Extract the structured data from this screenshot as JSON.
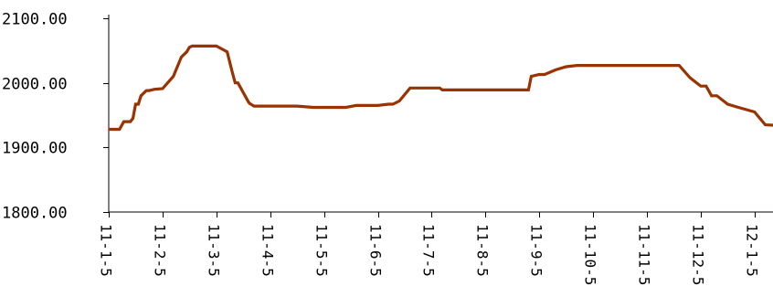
{
  "chart_data": {
    "type": "line",
    "title": "",
    "xlabel": "",
    "ylabel": "",
    "ylim": [
      1800,
      2100
    ],
    "y_ticks": [
      {
        "value": 1800,
        "label": "1800.00"
      },
      {
        "value": 1900,
        "label": "1900.00"
      },
      {
        "value": 2000,
        "label": "2000.00"
      },
      {
        "value": 2100,
        "label": "2100.00"
      }
    ],
    "x_ticks": [
      "11-1-5",
      "11-2-5",
      "11-3-5",
      "11-4-5",
      "11-5-5",
      "11-6-5",
      "11-7-5",
      "11-8-5",
      "11-9-5",
      "11-10-5",
      "11-11-5",
      "11-12-5",
      "12-1-5"
    ],
    "xlim": [
      0,
      12.45
    ],
    "grid": false,
    "line_color": "#993300",
    "series": [
      {
        "x": [
          0.0,
          0.2,
          0.28,
          0.4,
          0.45,
          0.5,
          0.55,
          0.6,
          0.7,
          0.75,
          0.8,
          0.85,
          1.0,
          1.2,
          1.35,
          1.45,
          1.5,
          1.55,
          1.6,
          1.7,
          1.8,
          2.0,
          2.2,
          2.3,
          2.35,
          2.4,
          2.6,
          2.62,
          2.7,
          2.9,
          2.95,
          3.15,
          3.5,
          3.8,
          4.0,
          4.2,
          4.4,
          4.6,
          4.8,
          5.0,
          5.2,
          5.28,
          5.4,
          5.6,
          5.8,
          6.0,
          6.15,
          6.2,
          6.4,
          6.6,
          6.8,
          7.0,
          7.2,
          7.5,
          7.8,
          7.85,
          8.0,
          8.1,
          8.3,
          8.5,
          8.7,
          9.0,
          9.5,
          10.0,
          10.3,
          10.5,
          10.6,
          10.8,
          11.0,
          11.1,
          11.2,
          11.3,
          11.5,
          11.7,
          12.0,
          12.2,
          12.45
        ],
        "y": [
          1928,
          1928,
          1940,
          1940,
          1945,
          1967,
          1967,
          1980,
          1988,
          1988,
          1989,
          1990,
          1991,
          2010,
          2040,
          2048,
          2055,
          2057,
          2057,
          2057,
          2057,
          2057,
          2048,
          2015,
          2000,
          2000,
          1970,
          1968,
          1964,
          1964,
          1964,
          1964,
          1964,
          1962,
          1962,
          1962,
          1962,
          1965,
          1965,
          1965,
          1967,
          1967,
          1972,
          1992,
          1992,
          1992,
          1992,
          1989,
          1989,
          1989,
          1989,
          1989,
          1989,
          1989,
          1989,
          2010,
          2013,
          2013,
          2020,
          2025,
          2027,
          2027,
          2027,
          2027,
          2027,
          2027,
          2027,
          2008,
          1995,
          1995,
          1980,
          1980,
          1967,
          1962,
          1955,
          1935,
          1934
        ]
      }
    ]
  }
}
